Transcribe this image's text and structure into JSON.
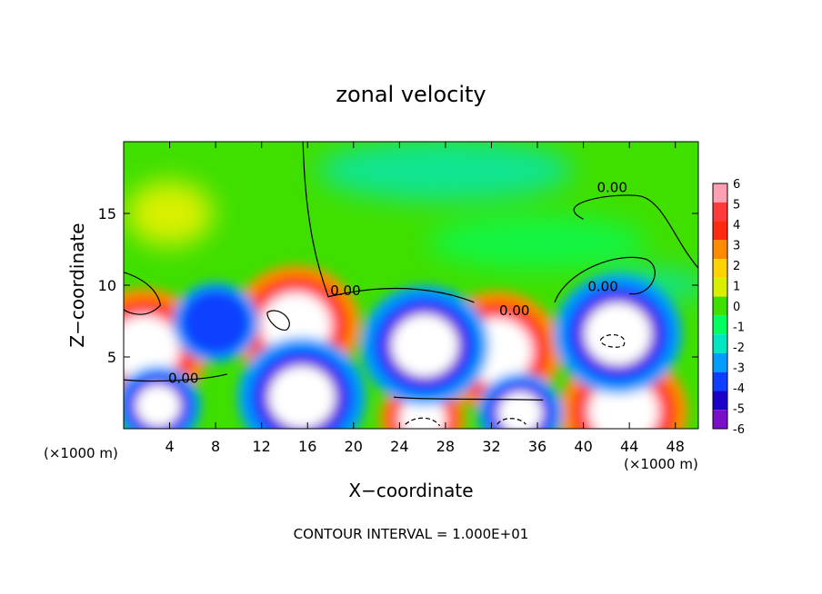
{
  "chart_data": {
    "type": "heatmap",
    "title": "zonal velocity",
    "xlabel": "X−coordinate",
    "ylabel": "Z−coordinate",
    "x_unit_left": "(×1000 m)",
    "x_unit_right": "(×1000 m)",
    "footer": "CONTOUR INTERVAL = 1.000E+01",
    "xlim": [
      0,
      50
    ],
    "ylim": [
      0,
      20
    ],
    "x_ticks": [
      4,
      8,
      12,
      16,
      20,
      24,
      28,
      32,
      36,
      40,
      44,
      48
    ],
    "y_ticks": [
      5,
      10,
      15
    ],
    "colorbar": {
      "levels": [
        6,
        5,
        4,
        3,
        2,
        1,
        0,
        -1,
        -2,
        -3,
        -4,
        -5,
        -6
      ],
      "colors": [
        "#ff9fb4",
        "#ff3b3b",
        "#ff2b10",
        "#ff8c00",
        "#ffd400",
        "#d8f000",
        "#3fdf00",
        "#00ff60",
        "#00e6c0",
        "#009fff",
        "#1040ff",
        "#1a00c8",
        "#7a10c8"
      ],
      "position": "right"
    },
    "contour_labels": [
      {
        "text": "0.00",
        "x": 42.5,
        "y": 16.5
      },
      {
        "text": "0.00",
        "x": 19.3,
        "y": 9.3
      },
      {
        "text": "0.00",
        "x": 34.0,
        "y": 7.9
      },
      {
        "text": "0.00",
        "x": 41.7,
        "y": 9.6
      },
      {
        "text": "0.00",
        "x": 5.2,
        "y": 3.2
      }
    ],
    "features": [
      {
        "sign": "positive",
        "x": 1.8,
        "y": 5.6,
        "magnitude": 8
      },
      {
        "sign": "positive",
        "x": 15.0,
        "y": 7.2,
        "magnitude": 9
      },
      {
        "sign": "positive",
        "x": 32.5,
        "y": 5.4,
        "magnitude": 8
      },
      {
        "sign": "positive",
        "x": 43.5,
        "y": 1.2,
        "magnitude": 8
      },
      {
        "sign": "positive",
        "x": 26.0,
        "y": 0.7,
        "magnitude": 7
      },
      {
        "sign": "positive",
        "x": 4.0,
        "y": 14.8,
        "magnitude": 2
      },
      {
        "sign": "negative",
        "x": 26.2,
        "y": 5.8,
        "magnitude": -8
      },
      {
        "sign": "negative",
        "x": 43.0,
        "y": 6.6,
        "magnitude": -9
      },
      {
        "sign": "negative",
        "x": 15.5,
        "y": 2.2,
        "magnitude": -8
      },
      {
        "sign": "negative",
        "x": 3.0,
        "y": 1.6,
        "magnitude": -6
      },
      {
        "sign": "negative",
        "x": 34.5,
        "y": 1.1,
        "magnitude": -7
      },
      {
        "sign": "negative",
        "x": 27.5,
        "y": 18.3,
        "magnitude": -1.8
      },
      {
        "sign": "negative",
        "x": 8.0,
        "y": 7.4,
        "magnitude": -4
      }
    ]
  }
}
